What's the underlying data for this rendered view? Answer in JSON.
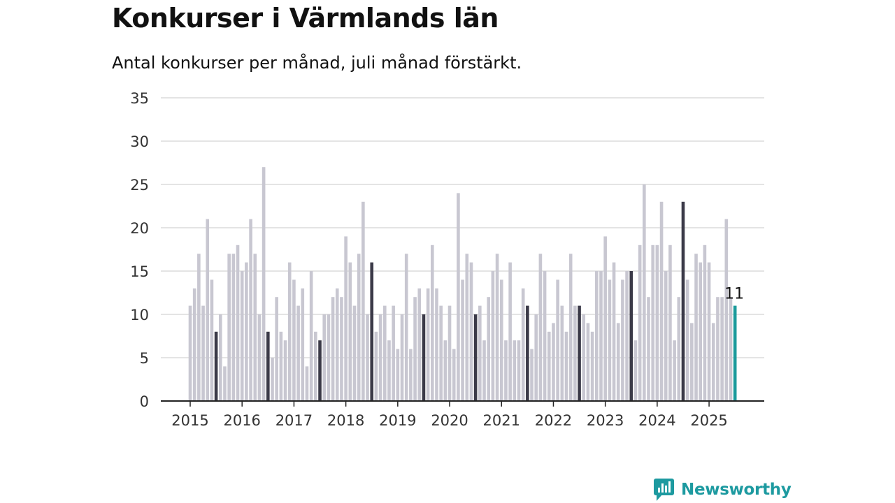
{
  "title": "Konkurser i Värmlands län",
  "subtitle": "Antal konkurser per månad, juli månad förstärkt.",
  "brand": {
    "name": "Newsworthy",
    "icon": "newsworthy-logo-icon"
  },
  "colors": {
    "bar": "#c8c7d1",
    "highlight": "#3b3a48",
    "latest": "#1a9a9b",
    "grid": "#dcdcdc",
    "axis": "#222222"
  },
  "chart_data": {
    "type": "bar",
    "title": "Konkurser i Värmlands län",
    "ylim": [
      0,
      35
    ],
    "yticks": [
      0,
      5,
      10,
      15,
      20,
      25,
      30,
      35
    ],
    "x_tick_labels": [
      "2015",
      "2016",
      "2017",
      "2018",
      "2019",
      "2020",
      "2021",
      "2022",
      "2023",
      "2024",
      "2025"
    ],
    "start": "2015-01",
    "highlight_month": "July",
    "grid": true,
    "series": [
      {
        "values": [
          11,
          13,
          17,
          11,
          21,
          14,
          8,
          10,
          4,
          17,
          17,
          18,
          15,
          16,
          21,
          17,
          10,
          27,
          8,
          5,
          12,
          8,
          7,
          16,
          14,
          11,
          13,
          4,
          15,
          8,
          7,
          10,
          10,
          12,
          13,
          12,
          19,
          16,
          11,
          17,
          23,
          10,
          16,
          8,
          10,
          11,
          7,
          11,
          6,
          10,
          17,
          6,
          12,
          13,
          10,
          13,
          18,
          13,
          11,
          7,
          11,
          6,
          24,
          14,
          17,
          16,
          10,
          11,
          7,
          12,
          15,
          17,
          14,
          7,
          16,
          7,
          7,
          13,
          11,
          6,
          10,
          17,
          15,
          8,
          9,
          14,
          11,
          8,
          17,
          11,
          11,
          10,
          9,
          8,
          15,
          15,
          19,
          14,
          16,
          9,
          14,
          15,
          15,
          7,
          18,
          25,
          12,
          18,
          18,
          23,
          15,
          18,
          7,
          12,
          23,
          14,
          9,
          17,
          16,
          18,
          16,
          9,
          12,
          12,
          21,
          12,
          11
        ]
      }
    ],
    "annotations": [
      {
        "label": "11",
        "target": "latest"
      }
    ]
  }
}
